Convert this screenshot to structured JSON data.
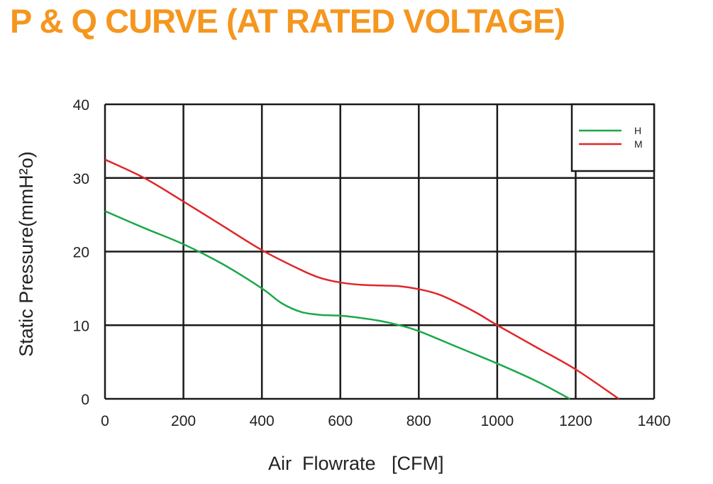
{
  "title": "P & Q CURVE (AT RATED VOLTAGE)",
  "colors": {
    "title": "#F5961E",
    "grid": "#1a1a1a",
    "series_h": "#1BA84A",
    "series_m": "#E0262A"
  },
  "chart_data": {
    "type": "line",
    "xlabel": "Air  Flowrate   [CFM]",
    "ylabel": "Static Pressure(mmH²o)",
    "xlim": [
      0,
      1400
    ],
    "ylim": [
      0,
      40
    ],
    "x_ticks": [
      "0",
      "200",
      "400",
      "600",
      "800",
      "1000",
      "1200",
      "1400"
    ],
    "y_ticks": [
      "0",
      "10",
      "20",
      "30",
      "40"
    ],
    "grid": true,
    "legend_position": "top-right",
    "series": [
      {
        "name": "H",
        "color": "#1BA84A",
        "x": [
          0,
          100,
          200,
          300,
          400,
          450,
          500,
          550,
          600,
          650,
          700,
          750,
          800,
          900,
          1000,
          1100,
          1185
        ],
        "y": [
          25.5,
          23.2,
          21.0,
          18.3,
          15.0,
          13.0,
          11.8,
          11.4,
          11.3,
          11.0,
          10.6,
          10.0,
          9.2,
          7.0,
          4.8,
          2.4,
          0
        ]
      },
      {
        "name": "M",
        "color": "#E0262A",
        "x": [
          0,
          100,
          200,
          300,
          400,
          500,
          550,
          600,
          650,
          700,
          750,
          800,
          850,
          900,
          950,
          1000,
          1100,
          1200,
          1310
        ],
        "y": [
          32.5,
          30.0,
          26.8,
          23.5,
          20.2,
          17.5,
          16.4,
          15.8,
          15.5,
          15.4,
          15.3,
          14.9,
          14.2,
          13.0,
          11.6,
          10.0,
          7.0,
          4.0,
          0
        ]
      }
    ]
  }
}
